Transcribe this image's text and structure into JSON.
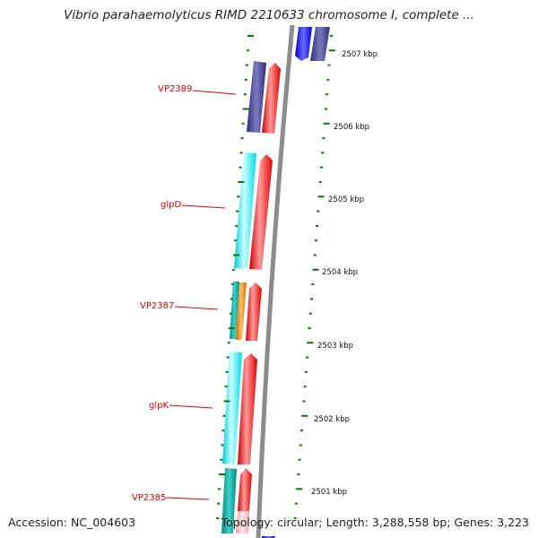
{
  "title": "Vibrio parahaemolyticus RIMD 2210633 chromosome I, complete ...",
  "footer": {
    "accession": "Accession: NC_004603",
    "topology": "Topology: circular; Length: 3,288,558 bp; Genes: 3,223"
  },
  "kbp_labels": [
    "2507 kbp",
    "2506 kbp",
    "2505 kbp",
    "2504 kbp",
    "2503 kbp",
    "2502 kbp",
    "2501 kbp"
  ],
  "gene_labels": [
    "VP2389",
    "glpD",
    "VP2387",
    "glpK",
    "VP2385"
  ],
  "colors": {
    "backbone": "#8c8c8c",
    "forward_strand": "#0000ff",
    "cog_purple": "#4b4b9a",
    "cog_cyan": "#00e5ee",
    "cog_teal": "#00b0a8",
    "cog_orange": "#f08c00",
    "orf_red": "#ff0000",
    "orf_pink": "#f4b8c0",
    "tick_green": "#007a00",
    "label_red": "#e00000"
  }
}
